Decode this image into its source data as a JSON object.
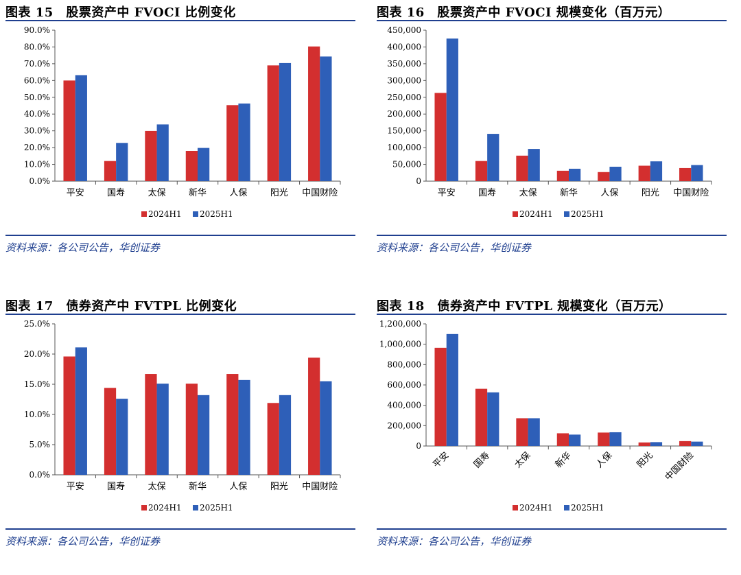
{
  "colors": {
    "s2024": "#d32f2f",
    "s2025": "#2e5fb8",
    "rule": "#1f3f8f",
    "source": "#1f3f8f"
  },
  "source_text": "资料来源：各公司公告，华创证券",
  "charts": [
    {
      "title": "图表 15　股票资产中 FVOCI 比例变化",
      "source": "资料来源：各公司公告，华创证券",
      "chart_data": {
        "type": "bar",
        "categories": [
          "平安",
          "国寿",
          "太保",
          "新华",
          "人保",
          "阳光",
          "中国财险"
        ],
        "series": [
          {
            "name": "2024H1",
            "values": [
              60.0,
              12.0,
              29.9,
              18.0,
              45.3,
              69.0,
              80.3
            ]
          },
          {
            "name": "2025H1",
            "values": [
              63.2,
              22.8,
              33.8,
              19.8,
              46.3,
              70.4,
              74.3
            ]
          }
        ],
        "ylim": [
          0,
          90
        ],
        "yticks": [
          "0.0%",
          "10.0%",
          "20.0%",
          "30.0%",
          "40.0%",
          "50.0%",
          "60.0%",
          "70.0%",
          "80.0%",
          "90.0%"
        ],
        "legend": "bottom",
        "rotate_labels": false
      }
    },
    {
      "title": "图表 16　股票资产中 FVOCI 规模变化（百万元）",
      "source": "资料来源：各公司公告，华创证券",
      "chart_data": {
        "type": "bar",
        "categories": [
          "平安",
          "国寿",
          "太保",
          "新华",
          "人保",
          "阳光",
          "中国财险"
        ],
        "series": [
          {
            "name": "2024H1",
            "values": [
              263000,
              60000,
              76000,
              31000,
              27000,
              46000,
              39000
            ]
          },
          {
            "name": "2025H1",
            "values": [
              425000,
              141000,
              96000,
              37000,
              43000,
              59000,
              48000
            ]
          }
        ],
        "ylim": [
          0,
          450000
        ],
        "yticks": [
          "0",
          "50,000",
          "100,000",
          "150,000",
          "200,000",
          "250,000",
          "300,000",
          "350,000",
          "400,000",
          "450,000"
        ],
        "legend": "bottom",
        "rotate_labels": false
      }
    },
    {
      "title": "图表 17　债券资产中 FVTPL 比例变化",
      "source": "资料来源：各公司公告，华创证券",
      "chart_data": {
        "type": "bar",
        "categories": [
          "平安",
          "国寿",
          "太保",
          "新华",
          "人保",
          "阳光",
          "中国财险"
        ],
        "series": [
          {
            "name": "2024H1",
            "values": [
              19.6,
              14.4,
              16.7,
              15.1,
              16.7,
              11.9,
              19.4
            ]
          },
          {
            "name": "2025H1",
            "values": [
              21.1,
              12.6,
              15.1,
              13.2,
              15.7,
              13.2,
              15.5
            ]
          }
        ],
        "ylim": [
          0,
          25
        ],
        "yticks": [
          "0.0%",
          "5.0%",
          "10.0%",
          "15.0%",
          "20.0%",
          "25.0%"
        ],
        "legend": "bottom",
        "rotate_labels": false
      }
    },
    {
      "title": "图表 18　债券资产中 FVTPL 规模变化（百万元）",
      "source": "资料来源：各公司公告，华创证券",
      "chart_data": {
        "type": "bar",
        "categories": [
          "平安",
          "国寿",
          "太保",
          "新华",
          "人保",
          "阳光",
          "中国财险"
        ],
        "series": [
          {
            "name": "2024H1",
            "values": [
              965000,
              562000,
              273000,
              125000,
              132000,
              35000,
              48000
            ]
          },
          {
            "name": "2025H1",
            "values": [
              1100000,
              527000,
              273000,
              112000,
              135000,
              38000,
              43000
            ]
          }
        ],
        "ylim": [
          0,
          1200000
        ],
        "yticks": [
          "0",
          "200,000",
          "400,000",
          "600,000",
          "800,000",
          "1,000,000",
          "1,200,000"
        ],
        "legend": "bottom",
        "rotate_labels": true
      }
    }
  ]
}
